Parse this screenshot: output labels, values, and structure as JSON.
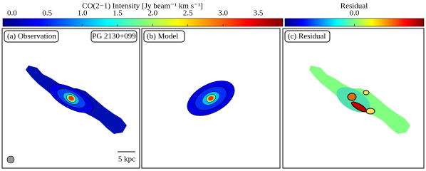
{
  "colorbars": [
    {
      "label": "CO(2−1) Intensity [Jy beam⁻¹ km s⁻¹]",
      "lim": [
        -0.13,
        3.85
      ],
      "ticks": [
        {
          "value": 0,
          "label": "0.0"
        },
        {
          "value": 0.5,
          "label": "0.5"
        },
        {
          "value": 1,
          "label": "1.0"
        },
        {
          "value": 1.5,
          "label": "1.5"
        },
        {
          "value": 2,
          "label": "2.0"
        },
        {
          "value": 2.5,
          "label": "2.5"
        },
        {
          "value": 3,
          "label": "3.0"
        },
        {
          "value": 3.5,
          "label": "3.5"
        }
      ]
    },
    {
      "label": "Residual",
      "lim": [
        -1,
        1
      ],
      "ticks": [
        {
          "value": 0,
          "label": "0.0"
        }
      ]
    }
  ],
  "panels": [
    {
      "label": "(a) Observation",
      "target": "PG 2130+099",
      "scale_bar": "5 kpc"
    },
    {
      "label": "(b) Model"
    },
    {
      "label": "(c) Residual"
    }
  ]
}
